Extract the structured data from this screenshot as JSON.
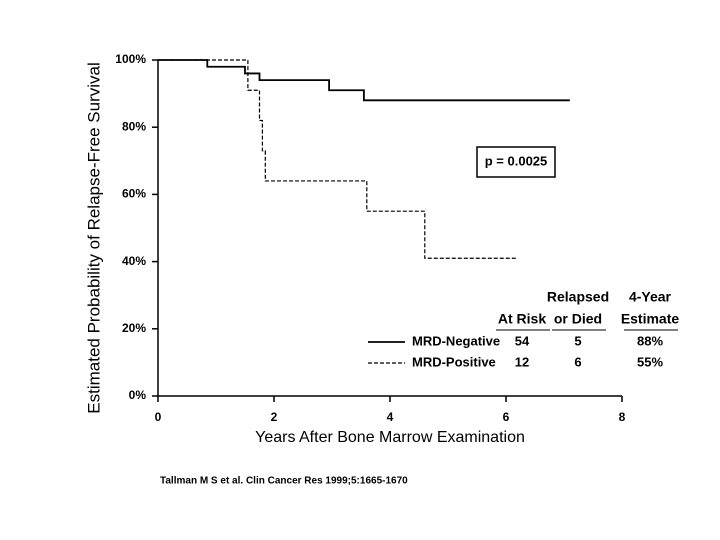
{
  "chart_data": {
    "type": "line",
    "step": true,
    "y_label": "Estimated Probability of Relapse-Free Survival",
    "x_label": "Years After Bone Marrow Examination",
    "annotation": "p = 0.0025",
    "xlim": [
      0,
      8
    ],
    "ylim": [
      0,
      100
    ],
    "xticks": [
      0,
      2,
      4,
      6,
      8
    ],
    "yticks": [
      {
        "value": 0,
        "label": "0%"
      },
      {
        "value": 20,
        "label": "20%"
      },
      {
        "value": 40,
        "label": "40%"
      },
      {
        "value": 60,
        "label": "60%"
      },
      {
        "value": 80,
        "label": "80%"
      },
      {
        "value": 100,
        "label": "100%"
      }
    ],
    "table_header": [
      [
        "At Risk"
      ],
      [
        "Relapsed",
        "or Died"
      ],
      [
        "4-Year",
        "Estimate"
      ]
    ],
    "series": [
      {
        "name": "MRD-Negative",
        "color": "#000000",
        "line_style": "solid",
        "x": [
          0,
          0.85,
          1.5,
          1.75,
          2.95,
          3.55,
          7.1
        ],
        "values": [
          100,
          98,
          96,
          94,
          91,
          88,
          88
        ],
        "at_risk": 54,
        "relapsed_or_died": 5,
        "four_year_estimate": {
          "value": 88,
          "label": "88%"
        }
      },
      {
        "name": "MRD-Positive",
        "color": "#000000",
        "line_style": "dashed",
        "x": [
          0,
          1.55,
          1.75,
          1.8,
          1.85,
          3.6,
          4.6,
          6.2
        ],
        "values": [
          100,
          91,
          82,
          73,
          64,
          55,
          41,
          41
        ],
        "at_risk": 12,
        "relapsed_or_died": 6,
        "four_year_estimate": {
          "value": 55,
          "label": "55%"
        }
      }
    ],
    "citation": "Tallman M S et al. Clin Cancer Res 1999;5:1665-1670"
  }
}
